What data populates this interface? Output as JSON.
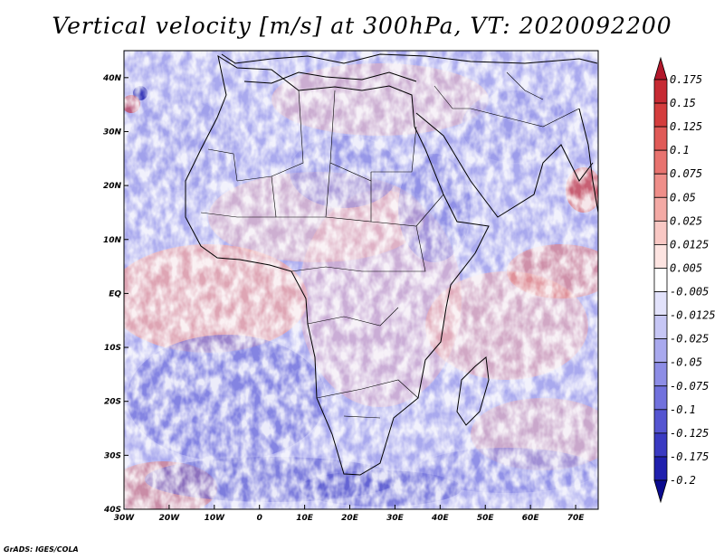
{
  "title": "Vertical velocity [m/s] at 300hPa, VT: 2020092200",
  "credit": "GrADS: IGES/COLA",
  "map": {
    "lon_ticks": [
      "30W",
      "20W",
      "10W",
      "0",
      "10E",
      "20E",
      "30E",
      "40E",
      "50E",
      "60E",
      "70E"
    ],
    "lat_ticks": [
      "40N",
      "30N",
      "20N",
      "10N",
      "EQ",
      "10S",
      "20S",
      "30S",
      "40S"
    ],
    "lon_range": [
      -30,
      75
    ],
    "lat_range": [
      -40,
      45
    ]
  },
  "colorbar": {
    "labels": [
      "0.175",
      "0.15",
      "0.125",
      "0.1",
      "0.075",
      "0.05",
      "0.025",
      "0.0125",
      "0.005",
      "-0.005",
      "-0.0125",
      "-0.025",
      "-0.05",
      "-0.075",
      "-0.1",
      "-0.125",
      "-0.175",
      "-0.2"
    ],
    "colors": [
      "#b2182b",
      "#c62a33",
      "#d43d3d",
      "#e05a57",
      "#e8736f",
      "#ef8e89",
      "#f4aaa5",
      "#f9c8c4",
      "#fde4e1",
      "#ffffff",
      "#e2e2fb",
      "#c6c6f5",
      "#a9a9ee",
      "#8d8de6",
      "#7171dd",
      "#5555d1",
      "#3a3ac2",
      "#2020ae",
      "#0b0b8f"
    ]
  }
}
